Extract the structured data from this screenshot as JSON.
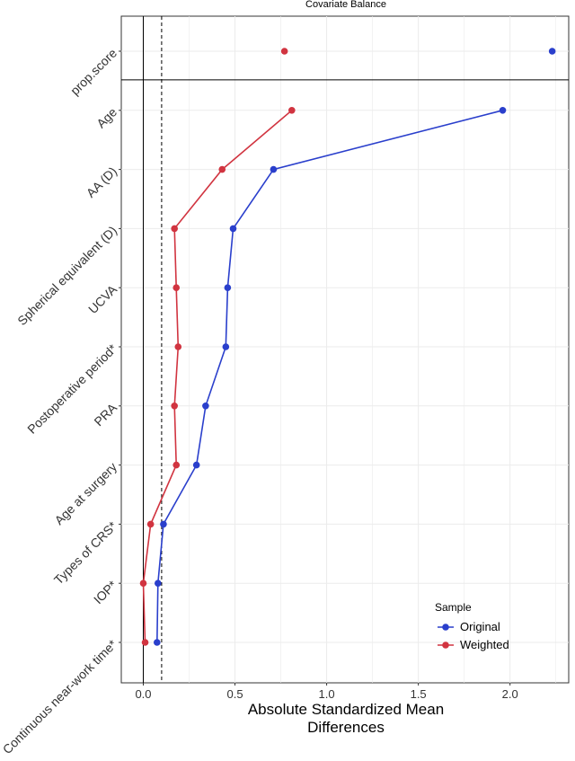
{
  "chart_data": {
    "type": "scatter",
    "title": "Covariate Balance",
    "xlabel": [
      "Absolute Standardized Mean",
      "Differences"
    ],
    "ylabel": "",
    "xlim": [
      -0.12,
      2.32
    ],
    "x_ticks": [
      "0.0",
      "0.5",
      "1.0",
      "1.5",
      "2.0"
    ],
    "x_tick_values": [
      0,
      0.5,
      1.0,
      1.5,
      2.0
    ],
    "threshold": 0.1,
    "reference_line": 0,
    "grid": true,
    "categories": [
      "prop.score",
      "Age",
      "AA (D)",
      "Spherical equivalent (D)",
      "UCVA",
      "Postoperative period*",
      "PRA",
      "Age at surgery",
      "Types of CRS*",
      "IOP*",
      "Continuous near-work time*"
    ],
    "series": [
      {
        "name": "Original",
        "color": "#2a3fcc",
        "values": [
          2.23,
          1.96,
          0.71,
          0.49,
          0.46,
          0.45,
          0.34,
          0.29,
          0.11,
          0.08,
          0.075
        ]
      },
      {
        "name": "Weighted",
        "color": "#d13440",
        "values": [
          0.77,
          0.81,
          0.43,
          0.17,
          0.18,
          0.19,
          0.17,
          0.18,
          0.04,
          0.0,
          0.01
        ]
      }
    ],
    "legend": {
      "title": "Sample",
      "position": "bottom-right"
    }
  }
}
